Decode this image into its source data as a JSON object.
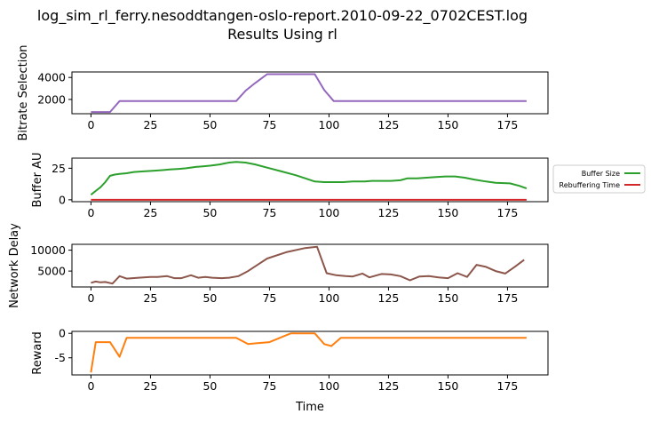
{
  "title": "log_sim_rl_ferry.nesoddtangen-oslo-report.2010-09-22_0702CEST.log",
  "subtitle": "Results Using rl",
  "chart_data": [
    {
      "type": "line",
      "ylabel": "Bitrate Selection",
      "xlim": [
        -8,
        192
      ],
      "ylim": [
        700,
        4500
      ],
      "xticks": [
        0,
        25,
        50,
        75,
        100,
        125,
        150,
        175
      ],
      "yticks": [
        2000,
        4000
      ],
      "series": [
        {
          "color": "#9467bd",
          "x": [
            0,
            4,
            8,
            12,
            16,
            20,
            25,
            30,
            35,
            40,
            45,
            50,
            55,
            61,
            65,
            69,
            74,
            78,
            82,
            86,
            90,
            94,
            98,
            102,
            106,
            110,
            115,
            120,
            125,
            130,
            140,
            150,
            160,
            170,
            175,
            180,
            183
          ],
          "y": [
            850,
            850,
            850,
            1850,
            1850,
            1850,
            1850,
            1850,
            1850,
            1850,
            1850,
            1850,
            1850,
            1850,
            2800,
            3500,
            4300,
            4300,
            4300,
            4300,
            4300,
            4300,
            2850,
            1850,
            1850,
            1850,
            1850,
            1850,
            1850,
            1850,
            1850,
            1850,
            1850,
            1850,
            1850,
            1850,
            1850
          ]
        }
      ]
    },
    {
      "type": "line",
      "ylabel": "Buffer AU",
      "xlim": [
        -8,
        192
      ],
      "ylim": [
        -1.5,
        33
      ],
      "xticks": [
        0,
        25,
        50,
        75,
        100,
        125,
        150,
        175
      ],
      "yticks": [
        0,
        25
      ],
      "legend": "right",
      "series": [
        {
          "name": "Buffer Size",
          "color": "#2ca02c",
          "x": [
            0,
            2,
            4,
            6,
            8,
            10,
            12,
            15,
            18,
            22,
            26,
            30,
            33,
            37,
            40,
            44,
            47,
            50,
            54,
            58,
            61,
            65,
            69,
            74,
            80,
            86,
            90,
            94,
            98,
            102,
            106,
            110,
            115,
            118,
            122,
            126,
            130,
            133,
            137,
            141,
            145,
            149,
            153,
            157,
            161,
            166,
            170,
            176,
            180,
            183
          ],
          "y": [
            4,
            7,
            10,
            14,
            19,
            20,
            20.5,
            21,
            22,
            22.5,
            23,
            23.5,
            24,
            24.5,
            25,
            26,
            26.5,
            27,
            28,
            29.5,
            30,
            29.5,
            28,
            25.5,
            22.5,
            19.5,
            17,
            14.5,
            14,
            14,
            14,
            14.5,
            14.5,
            15,
            15,
            15,
            15.5,
            17,
            17,
            17.5,
            18,
            18.5,
            18.5,
            17.5,
            16,
            14.5,
            13.5,
            13,
            11,
            9
          ]
        },
        {
          "name": "Rebuffering Time",
          "color": "#d62728",
          "x": [
            0,
            183
          ],
          "y": [
            0,
            0
          ]
        }
      ]
    },
    {
      "type": "line",
      "ylabel": "Network Delay",
      "xlim": [
        -8,
        192
      ],
      "ylim": [
        1200,
        11400
      ],
      "xticks": [
        0,
        25,
        50,
        75,
        100,
        125,
        150,
        175
      ],
      "yticks": [
        5000,
        10000
      ],
      "series": [
        {
          "color": "#8c564b",
          "x": [
            0,
            2,
            4,
            6,
            9,
            12,
            15,
            20,
            25,
            28,
            32,
            35,
            38,
            42,
            45,
            48,
            51,
            55,
            58,
            62,
            66,
            70,
            74,
            82,
            90,
            95,
            99,
            103,
            107,
            110,
            114,
            117,
            122,
            126,
            130,
            134,
            138,
            142,
            146,
            150,
            154,
            158,
            162,
            166,
            170,
            174,
            178,
            182
          ],
          "y": [
            2200,
            2500,
            2300,
            2400,
            2000,
            3800,
            3200,
            3400,
            3600,
            3600,
            3800,
            3300,
            3300,
            4000,
            3400,
            3600,
            3400,
            3300,
            3400,
            3800,
            5000,
            6500,
            8000,
            9500,
            10500,
            10800,
            4500,
            4000,
            3800,
            3700,
            4400,
            3500,
            4300,
            4200,
            3800,
            2800,
            3700,
            3800,
            3500,
            3300,
            4500,
            3600,
            6500,
            6000,
            5000,
            4400,
            6000,
            7700
          ]
        }
      ]
    },
    {
      "type": "line",
      "ylabel": "Reward",
      "xlabel": "Time",
      "xlim": [
        -8,
        192
      ],
      "ylim": [
        -8.5,
        0.4
      ],
      "xticks": [
        0,
        25,
        50,
        75,
        100,
        125,
        150,
        175
      ],
      "yticks": [
        -5,
        0
      ],
      "series": [
        {
          "color": "#ff7f0e",
          "x": [
            0,
            2,
            5,
            8,
            12,
            15,
            20,
            25,
            30,
            40,
            50,
            55,
            61,
            66,
            70,
            75,
            80,
            84,
            88,
            92,
            94,
            98,
            101,
            105,
            110,
            120,
            130,
            140,
            150,
            160,
            170,
            183
          ],
          "y": [
            -8,
            -1.8,
            -1.8,
            -1.8,
            -4.8,
            -0.9,
            -0.9,
            -0.9,
            -0.9,
            -0.9,
            -0.9,
            -0.9,
            -0.9,
            -2.2,
            -2.0,
            -1.8,
            -0.8,
            0,
            0,
            0,
            0,
            -2.2,
            -2.6,
            -0.9,
            -0.9,
            -0.9,
            -0.9,
            -0.9,
            -0.9,
            -0.9,
            -0.9,
            -0.9
          ]
        }
      ]
    }
  ]
}
